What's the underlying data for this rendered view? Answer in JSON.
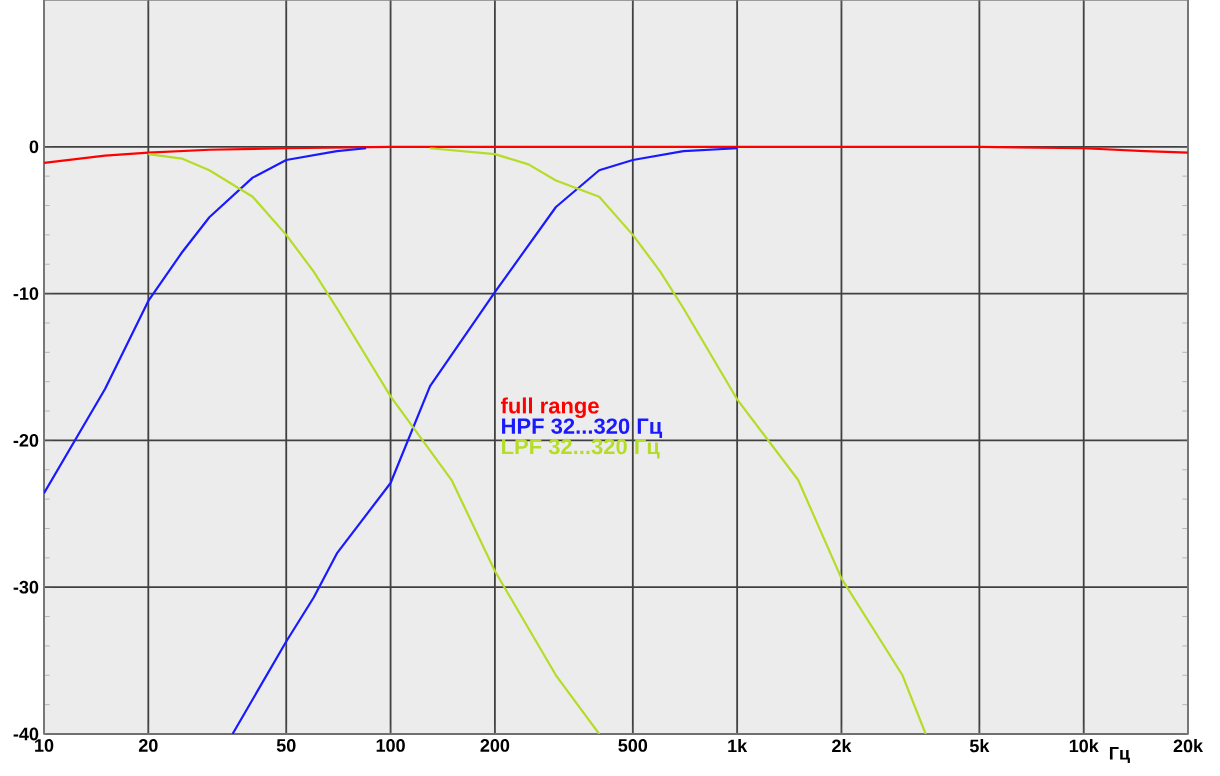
{
  "chart_data": {
    "type": "line",
    "xlabel": "Гц",
    "log": "x",
    "grid": true,
    "legend": "center",
    "line_style": "solid",
    "marker": "none",
    "xlim": [
      10,
      20000
    ],
    "ylim": [
      -40,
      10
    ],
    "xticks": [
      10,
      20,
      50,
      100,
      200,
      500,
      {
        "value": 1000,
        "label": "1k"
      },
      {
        "value": 2000,
        "label": "2k"
      },
      {
        "value": 5000,
        "label": "5k"
      },
      {
        "value": 10000,
        "label": "10k"
      },
      {
        "value": 20000,
        "label": "20k"
      }
    ],
    "yticks": [
      -40,
      -30,
      -20,
      -10,
      0
    ],
    "series": [
      {
        "name": "full range",
        "color": "#ff0000",
        "x": [
          10,
          15,
          20,
          30,
          50,
          100,
          1000,
          5000,
          10000,
          15000,
          20000
        ],
        "values": [
          -1.1,
          -0.6,
          -0.4,
          -0.2,
          -0.1,
          0,
          0,
          0,
          -0.1,
          -0.3,
          -0.4
        ]
      },
      {
        "name": "HPF 32...320 Гц",
        "color": "#1a1aff",
        "x": [
          10,
          15,
          20,
          25,
          30,
          40,
          50,
          70,
          85
        ],
        "values": [
          -23.6,
          -16.5,
          -10.5,
          -7.2,
          -4.8,
          -2.1,
          -0.9,
          -0.3,
          -0.1
        ]
      },
      {
        "color": "#1a1aff",
        "x": [
          35,
          50,
          60,
          70,
          100,
          130,
          200,
          300,
          400,
          500,
          700,
          1000
        ],
        "values": [
          -40,
          -33.7,
          -30.7,
          -27.7,
          -22.9,
          -16.3,
          -9.9,
          -4.1,
          -1.6,
          -0.9,
          -0.3,
          -0.1
        ]
      },
      {
        "name": "LPF  32...320 Гц",
        "color": "#b4dc28",
        "x": [
          20,
          25,
          30,
          40,
          50,
          60,
          70,
          100,
          150,
          200,
          300,
          400
        ],
        "values": [
          -0.5,
          -0.8,
          -1.6,
          -3.4,
          -6,
          -8.5,
          -11,
          -17,
          -22.7,
          -28.9,
          -36,
          -40
        ]
      },
      {
        "color": "#b4dc28",
        "x": [
          130,
          200,
          250,
          300,
          400,
          500,
          600,
          700,
          1000,
          1500,
          2000,
          3000,
          3500
        ],
        "values": [
          -0.1,
          -0.5,
          -1.2,
          -2.3,
          -3.4,
          -6,
          -8.5,
          -11,
          -17.2,
          -22.7,
          -29.4,
          -36,
          -40
        ]
      }
    ]
  }
}
